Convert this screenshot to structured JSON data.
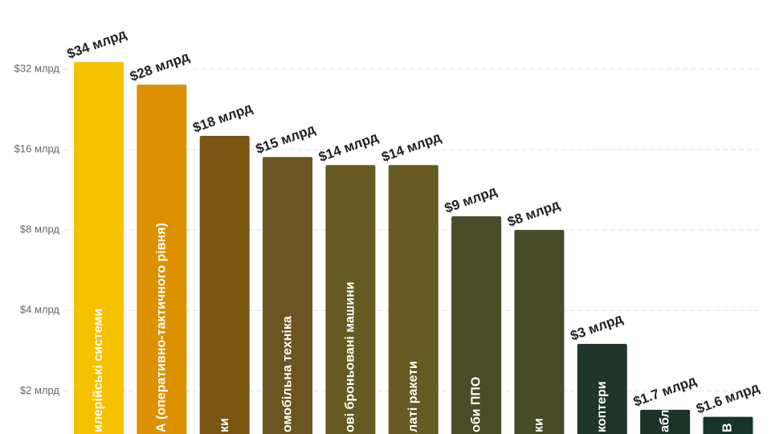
{
  "chart_data": {
    "type": "bar",
    "categories": [
      "илерійські системи",
      "А (оперативно-тактичного рівня)",
      "ки",
      "омобільна техніка",
      "ові броньовані машини",
      "латі ракети",
      "оби ППО",
      "ки",
      "коптери",
      "аблі",
      "В"
    ],
    "values": [
      34,
      28,
      18,
      15,
      14,
      14,
      9,
      8,
      3,
      1.7,
      1.6
    ],
    "value_labels": [
      "$34 млрд",
      "$28 млрд",
      "$18 млрд",
      "$15 млрд",
      "$14 млрд",
      "$14 млрд",
      "$9 млрд",
      "$8 млрд",
      "$3 млрд",
      "$1.7 млрд",
      "$1.6 млрд"
    ],
    "colors": [
      "#f6c200",
      "#dc9200",
      "#7a5413",
      "#6b5520",
      "#665a22",
      "#665a22",
      "#4a4c28",
      "#474b27",
      "#22352a",
      "#1b3328",
      "#17342b"
    ],
    "ylim": [
      1.38,
      58
    ],
    "log_scale": true,
    "yticks": [
      {
        "value": 2,
        "label": "$2 млрд"
      },
      {
        "value": 4,
        "label": "$4 млрд"
      },
      {
        "value": 8,
        "label": "$8 млрд"
      },
      {
        "value": 16,
        "label": "$16 млрд"
      },
      {
        "value": 32,
        "label": "$32 млрд"
      }
    ],
    "grid": true
  }
}
